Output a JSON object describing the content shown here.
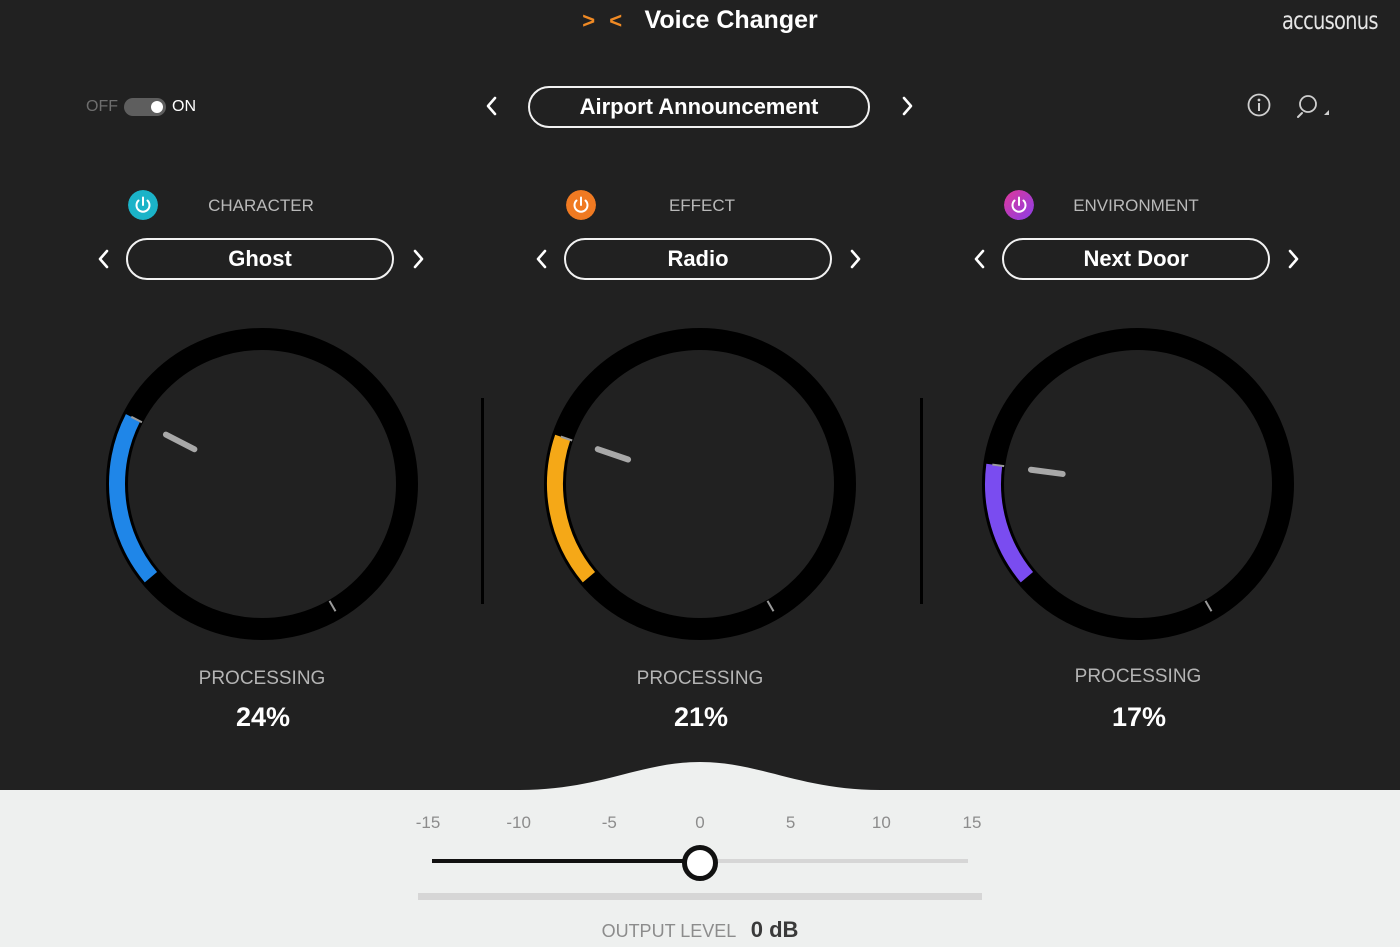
{
  "header": {
    "title": "Voice Changer",
    "logo_glyph": "> <",
    "brand": "accusonus"
  },
  "power_switch": {
    "off_label": "OFF",
    "on_label": "ON",
    "state": "on"
  },
  "preset": {
    "name": "Airport Announcement"
  },
  "toolbar": {
    "info_icon": "info-icon",
    "search_icon": "search-icon"
  },
  "modules": [
    {
      "label": "CHARACTER",
      "value": "Ghost",
      "processing_label": "PROCESSING",
      "processing_value": "24%",
      "processing": 0.24,
      "color": "#1f86e8",
      "power_color": "#1bb3c8"
    },
    {
      "label": "EFFECT",
      "value": "Radio",
      "processing_label": "PROCESSING",
      "processing_value": "21%",
      "processing": 0.21,
      "color": "#f5a817",
      "power_color": "#f07a22"
    },
    {
      "label": "ENVIRONMENT",
      "value": "Next Door",
      "processing_label": "PROCESSING",
      "processing_value": "17%",
      "processing": 0.17,
      "color": "#7a4cf0",
      "power_color": "#c43bd6"
    }
  ],
  "output": {
    "ticks": [
      "-15",
      "-10",
      "-5",
      "0",
      "5",
      "10",
      "15"
    ],
    "label": "OUTPUT LEVEL",
    "value_text": "0 dB",
    "value_db": 0,
    "min_db": -15,
    "max_db": 15
  },
  "colors": {
    "panel_bg": "#212121",
    "footer_bg": "#eef0ef"
  }
}
